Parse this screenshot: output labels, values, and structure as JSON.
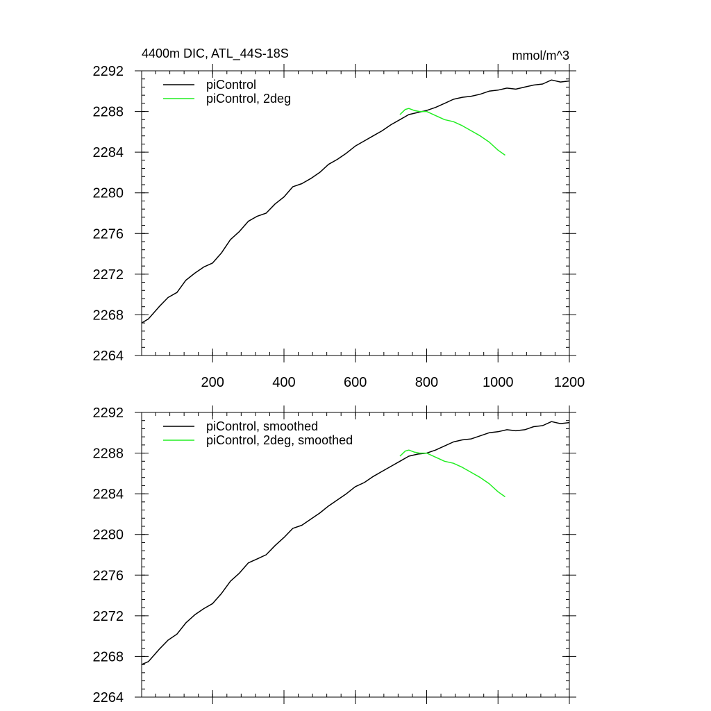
{
  "figure": {
    "title": "4400m DIC, ATL_44S-18S",
    "units": "mmol/m^3"
  },
  "chart_data": [
    {
      "type": "line",
      "title": "4400m DIC, ATL_44S-18S",
      "units": "mmol/m^3",
      "xlabel": "",
      "ylabel": "",
      "xlim": [
        1,
        1200
      ],
      "ylim": [
        2264,
        2292
      ],
      "xticks": [
        200,
        400,
        600,
        800,
        1000,
        1200
      ],
      "yticks": [
        2264,
        2268,
        2272,
        2276,
        2280,
        2284,
        2288,
        2292
      ],
      "show_x_tick_labels": true,
      "grid": false,
      "legend_position": "top-left",
      "series": [
        {
          "name": "piControl",
          "color": "#000000",
          "x": [
            1,
            20,
            50,
            75,
            100,
            125,
            150,
            175,
            200,
            225,
            250,
            275,
            300,
            325,
            350,
            375,
            400,
            425,
            450,
            475,
            500,
            525,
            550,
            575,
            600,
            625,
            650,
            675,
            700,
            725,
            750,
            775,
            800,
            825,
            850,
            875,
            900,
            925,
            950,
            975,
            1000,
            1025,
            1050,
            1075,
            1100,
            1125,
            1150,
            1175,
            1200
          ],
          "values": [
            2267.2,
            2267.6,
            2268.8,
            2269.7,
            2270.2,
            2271.4,
            2272.1,
            2272.7,
            2273.1,
            2274.1,
            2275.4,
            2276.2,
            2277.2,
            2277.7,
            2278.0,
            2278.9,
            2279.6,
            2280.6,
            2280.9,
            2281.4,
            2282.0,
            2282.8,
            2283.3,
            2283.9,
            2284.6,
            2285.1,
            2285.6,
            2286.1,
            2286.7,
            2287.2,
            2287.7,
            2287.9,
            2288.1,
            2288.4,
            2288.8,
            2289.2,
            2289.4,
            2289.5,
            2289.7,
            2290.0,
            2290.1,
            2290.3,
            2290.2,
            2290.4,
            2290.6,
            2290.7,
            2291.1,
            2290.9,
            2291.0
          ]
        },
        {
          "name": "piControl, 2deg",
          "color": "#22ee22",
          "x": [
            725,
            740,
            750,
            765,
            780,
            800,
            825,
            850,
            875,
            900,
            925,
            950,
            975,
            1000,
            1020
          ],
          "values": [
            2287.7,
            2288.2,
            2288.3,
            2288.1,
            2288.0,
            2288.0,
            2287.6,
            2287.2,
            2287.0,
            2286.6,
            2286.1,
            2285.6,
            2285.0,
            2284.2,
            2283.7
          ]
        }
      ]
    },
    {
      "type": "line",
      "title": "",
      "xlabel": "",
      "ylabel": "",
      "xlim": [
        1,
        1200
      ],
      "ylim": [
        2264,
        2292
      ],
      "xticks": [
        200,
        400,
        600,
        800,
        1000,
        1200
      ],
      "yticks": [
        2264,
        2268,
        2272,
        2276,
        2280,
        2284,
        2288,
        2292
      ],
      "show_x_tick_labels": false,
      "grid": false,
      "legend_position": "top-left",
      "series": [
        {
          "name": "piControl, smoothed",
          "color": "#000000",
          "x": [
            1,
            20,
            50,
            75,
            100,
            125,
            150,
            175,
            200,
            225,
            250,
            275,
            300,
            325,
            350,
            375,
            400,
            425,
            450,
            475,
            500,
            525,
            550,
            575,
            600,
            625,
            650,
            675,
            700,
            725,
            750,
            775,
            800,
            825,
            850,
            875,
            900,
            925,
            950,
            975,
            1000,
            1025,
            1050,
            1075,
            1100,
            1125,
            1150,
            1175,
            1200
          ],
          "values": [
            2267.2,
            2267.5,
            2268.7,
            2269.6,
            2270.2,
            2271.3,
            2272.1,
            2272.7,
            2273.2,
            2274.2,
            2275.4,
            2276.2,
            2277.2,
            2277.6,
            2278.0,
            2278.9,
            2279.7,
            2280.6,
            2280.9,
            2281.5,
            2282.1,
            2282.8,
            2283.4,
            2284.0,
            2284.7,
            2285.1,
            2285.7,
            2286.2,
            2286.7,
            2287.2,
            2287.7,
            2287.9,
            2288.0,
            2288.3,
            2288.7,
            2289.1,
            2289.3,
            2289.4,
            2289.7,
            2290.0,
            2290.1,
            2290.3,
            2290.2,
            2290.3,
            2290.6,
            2290.7,
            2291.1,
            2290.9,
            2291.0
          ]
        },
        {
          "name": "piControl, 2deg, smoothed",
          "color": "#22ee22",
          "x": [
            725,
            740,
            750,
            765,
            780,
            800,
            825,
            850,
            875,
            900,
            925,
            950,
            975,
            1000,
            1020
          ],
          "values": [
            2287.7,
            2288.2,
            2288.3,
            2288.1,
            2288.0,
            2288.0,
            2287.6,
            2287.2,
            2287.0,
            2286.6,
            2286.1,
            2285.6,
            2285.0,
            2284.2,
            2283.7
          ]
        }
      ]
    }
  ]
}
